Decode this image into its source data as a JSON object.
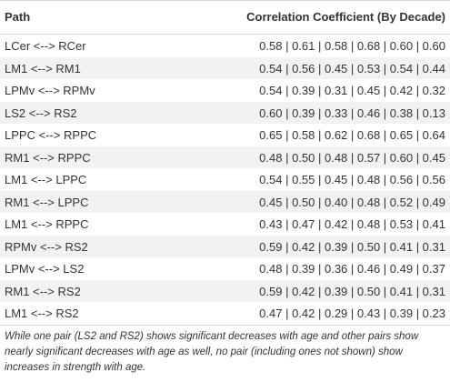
{
  "table": {
    "headers": {
      "path": "Path",
      "correlation": "Correlation Coefficient (By Decade)"
    },
    "rows": [
      {
        "path": "LCer <--> RCer",
        "values": "0.58 | 0.61 | 0.58 | 0.68 | 0.60 | 0.60"
      },
      {
        "path": "LM1 <--> RM1",
        "values": "0.54 | 0.56 | 0.45 | 0.53 | 0.54 | 0.44"
      },
      {
        "path": "LPMv <--> RPMv",
        "values": "0.54 | 0.39 | 0.31 | 0.45 | 0.42 | 0.32"
      },
      {
        "path": "LS2 <--> RS2",
        "values": "0.60 | 0.39 | 0.33 | 0.46 | 0.38 | 0.13"
      },
      {
        "path": "LPPC <--> RPPC",
        "values": "0.65 | 0.58 | 0.62 | 0.68 | 0.65 | 0.64"
      },
      {
        "path": "RM1 <--> RPPC",
        "values": "0.48 | 0.50 | 0.48 | 0.57 | 0.60 | 0.45"
      },
      {
        "path": "LM1 <--> LPPC",
        "values": "0.54 | 0.55 | 0.45 | 0.48 | 0.56 | 0.56"
      },
      {
        "path": "RM1 <--> LPPC",
        "values": "0.45 | 0.50 | 0.40 | 0.48 | 0.52 | 0.49"
      },
      {
        "path": "LM1 <--> RPPC",
        "values": "0.43 | 0.47 | 0.42 | 0.48 | 0.53 | 0.41"
      },
      {
        "path": "RPMv <--> RS2",
        "values": "0.59 | 0.42 | 0.39 | 0.50 | 0.41 | 0.31"
      },
      {
        "path": "LPMv <--> LS2",
        "values": "0.48 | 0.39 | 0.36 | 0.46 | 0.49 | 0.37"
      },
      {
        "path": "RM1 <--> RS2",
        "values": "0.59 | 0.42 | 0.39 | 0.50 | 0.41 | 0.31"
      },
      {
        "path": "LM1 <--> RS2",
        "values": "0.47 | 0.42 | 0.29 | 0.43 | 0.39 | 0.23"
      }
    ]
  },
  "footnote": "While one pair (LS2 and RS2) shows significant decreases with age and other pairs show nearly significant decreases with age as well, no pair (including ones not shown) show increases in strength with age."
}
